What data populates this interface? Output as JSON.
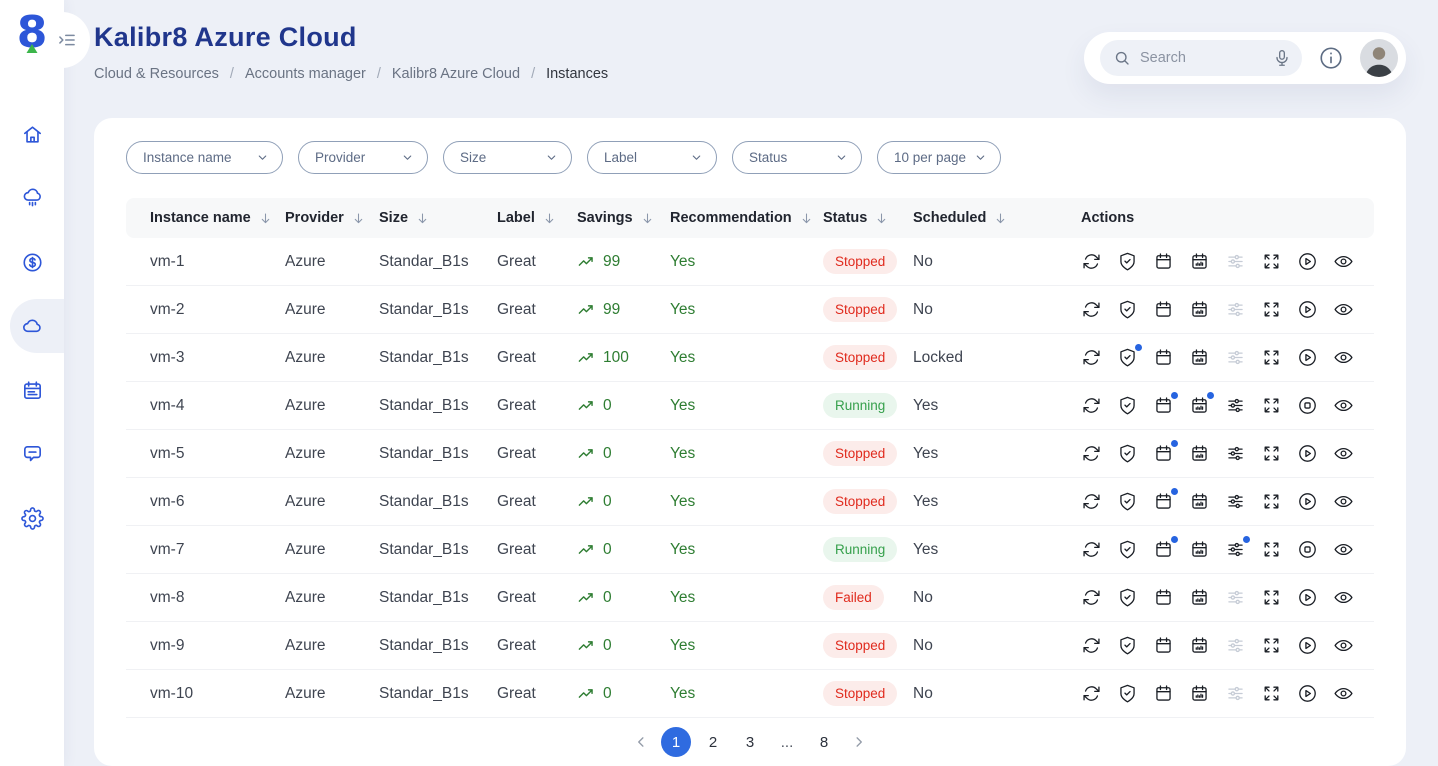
{
  "page": {
    "title": "Kalibr8 Azure Cloud",
    "breadcrumbs": [
      "Cloud & Resources",
      "Accounts manager",
      "Kalibr8 Azure Cloud",
      "Instances"
    ],
    "breadcrumb_separator": "/"
  },
  "topbar": {
    "search_placeholder": "Search",
    "icons": [
      "search-icon",
      "mic-icon",
      "info-icon",
      "avatar"
    ]
  },
  "sidebar": {
    "logo": "kalibr8-logo-8",
    "items": [
      {
        "name": "home",
        "icon": "home",
        "active": false
      },
      {
        "name": "cloud-resources",
        "icon": "cloud-network",
        "active": false
      },
      {
        "name": "costs",
        "icon": "dollar-circle",
        "active": false
      },
      {
        "name": "instances",
        "icon": "cloud",
        "active": true
      },
      {
        "name": "schedules",
        "icon": "calendar-lines",
        "active": false
      },
      {
        "name": "messages",
        "icon": "chat",
        "active": false
      },
      {
        "name": "settings",
        "icon": "gear",
        "active": false
      }
    ]
  },
  "filters": [
    {
      "label": "Instance name"
    },
    {
      "label": "Provider"
    },
    {
      "label": "Size"
    },
    {
      "label": "Label"
    },
    {
      "label": "Status"
    },
    {
      "label": "10 per page"
    }
  ],
  "table": {
    "columns": [
      {
        "label": "Instance name",
        "sortable": true
      },
      {
        "label": "Provider",
        "sortable": true
      },
      {
        "label": "Size",
        "sortable": true
      },
      {
        "label": "Label",
        "sortable": true
      },
      {
        "label": "Savings",
        "sortable": true
      },
      {
        "label": "Recommendation",
        "sortable": true
      },
      {
        "label": "Status",
        "sortable": true
      },
      {
        "label": "Scheduled",
        "sortable": true
      },
      {
        "label": "Actions",
        "sortable": false
      }
    ],
    "rows": [
      {
        "instance_name": "vm-1",
        "provider": "Azure",
        "size": "Standar_B1s",
        "label": "Great",
        "savings": "99",
        "recommendation": "Yes",
        "status": "Stopped",
        "status_variant": "danger",
        "scheduled": "No",
        "actions": [
          {
            "icon": "sync"
          },
          {
            "icon": "shield-check"
          },
          {
            "icon": "calendar"
          },
          {
            "icon": "calendar-chart"
          },
          {
            "icon": "sliders",
            "disabled": true
          },
          {
            "icon": "expand"
          },
          {
            "icon": "play"
          },
          {
            "icon": "eye"
          }
        ]
      },
      {
        "instance_name": "vm-2",
        "provider": "Azure",
        "size": "Standar_B1s",
        "label": "Great",
        "savings": "99",
        "recommendation": "Yes",
        "status": "Stopped",
        "status_variant": "danger",
        "scheduled": "No",
        "actions": [
          {
            "icon": "sync"
          },
          {
            "icon": "shield-check"
          },
          {
            "icon": "calendar"
          },
          {
            "icon": "calendar-chart"
          },
          {
            "icon": "sliders",
            "disabled": true
          },
          {
            "icon": "expand"
          },
          {
            "icon": "play"
          },
          {
            "icon": "eye"
          }
        ]
      },
      {
        "instance_name": "vm-3",
        "provider": "Azure",
        "size": "Standar_B1s",
        "label": "Great",
        "savings": "100",
        "recommendation": "Yes",
        "status": "Stopped",
        "status_variant": "danger",
        "scheduled": "Locked",
        "actions": [
          {
            "icon": "sync"
          },
          {
            "icon": "shield-check",
            "dot": true
          },
          {
            "icon": "calendar"
          },
          {
            "icon": "calendar-chart"
          },
          {
            "icon": "sliders",
            "disabled": true
          },
          {
            "icon": "expand"
          },
          {
            "icon": "play"
          },
          {
            "icon": "eye"
          }
        ]
      },
      {
        "instance_name": "vm-4",
        "provider": "Azure",
        "size": "Standar_B1s",
        "label": "Great",
        "savings": "0",
        "recommendation": "Yes",
        "status": "Running",
        "status_variant": "success",
        "scheduled": "Yes",
        "actions": [
          {
            "icon": "sync"
          },
          {
            "icon": "shield-check"
          },
          {
            "icon": "calendar",
            "dot": true
          },
          {
            "icon": "calendar-chart",
            "dot": true
          },
          {
            "icon": "sliders"
          },
          {
            "icon": "expand"
          },
          {
            "icon": "stop"
          },
          {
            "icon": "eye"
          }
        ]
      },
      {
        "instance_name": "vm-5",
        "provider": "Azure",
        "size": "Standar_B1s",
        "label": "Great",
        "savings": "0",
        "recommendation": "Yes",
        "status": "Stopped",
        "status_variant": "danger",
        "scheduled": "Yes",
        "actions": [
          {
            "icon": "sync"
          },
          {
            "icon": "shield-check"
          },
          {
            "icon": "calendar",
            "dot": true
          },
          {
            "icon": "calendar-chart"
          },
          {
            "icon": "sliders"
          },
          {
            "icon": "expand"
          },
          {
            "icon": "play"
          },
          {
            "icon": "eye"
          }
        ]
      },
      {
        "instance_name": "vm-6",
        "provider": "Azure",
        "size": "Standar_B1s",
        "label": "Great",
        "savings": "0",
        "recommendation": "Yes",
        "status": "Stopped",
        "status_variant": "danger",
        "scheduled": "Yes",
        "actions": [
          {
            "icon": "sync"
          },
          {
            "icon": "shield-check"
          },
          {
            "icon": "calendar",
            "dot": true
          },
          {
            "icon": "calendar-chart"
          },
          {
            "icon": "sliders"
          },
          {
            "icon": "expand"
          },
          {
            "icon": "play"
          },
          {
            "icon": "eye"
          }
        ]
      },
      {
        "instance_name": "vm-7",
        "provider": "Azure",
        "size": "Standar_B1s",
        "label": "Great",
        "savings": "0",
        "recommendation": "Yes",
        "status": "Running",
        "status_variant": "success",
        "scheduled": "Yes",
        "actions": [
          {
            "icon": "sync"
          },
          {
            "icon": "shield-check"
          },
          {
            "icon": "calendar",
            "dot": true
          },
          {
            "icon": "calendar-chart"
          },
          {
            "icon": "sliders",
            "dot": true
          },
          {
            "icon": "expand"
          },
          {
            "icon": "stop"
          },
          {
            "icon": "eye"
          }
        ]
      },
      {
        "instance_name": "vm-8",
        "provider": "Azure",
        "size": "Standar_B1s",
        "label": "Great",
        "savings": "0",
        "recommendation": "Yes",
        "status": "Failed",
        "status_variant": "danger",
        "scheduled": "No",
        "actions": [
          {
            "icon": "sync"
          },
          {
            "icon": "shield-check"
          },
          {
            "icon": "calendar"
          },
          {
            "icon": "calendar-chart"
          },
          {
            "icon": "sliders",
            "disabled": true
          },
          {
            "icon": "expand"
          },
          {
            "icon": "play"
          },
          {
            "icon": "eye"
          }
        ]
      },
      {
        "instance_name": "vm-9",
        "provider": "Azure",
        "size": "Standar_B1s",
        "label": "Great",
        "savings": "0",
        "recommendation": "Yes",
        "status": "Stopped",
        "status_variant": "danger",
        "scheduled": "No",
        "actions": [
          {
            "icon": "sync"
          },
          {
            "icon": "shield-check"
          },
          {
            "icon": "calendar"
          },
          {
            "icon": "calendar-chart"
          },
          {
            "icon": "sliders",
            "disabled": true
          },
          {
            "icon": "expand"
          },
          {
            "icon": "play"
          },
          {
            "icon": "eye"
          }
        ]
      },
      {
        "instance_name": "vm-10",
        "provider": "Azure",
        "size": "Standar_B1s",
        "label": "Great",
        "savings": "0",
        "recommendation": "Yes",
        "status": "Stopped",
        "status_variant": "danger",
        "scheduled": "No",
        "actions": [
          {
            "icon": "sync"
          },
          {
            "icon": "shield-check"
          },
          {
            "icon": "calendar"
          },
          {
            "icon": "calendar-chart"
          },
          {
            "icon": "sliders",
            "disabled": true
          },
          {
            "icon": "expand"
          },
          {
            "icon": "play"
          },
          {
            "icon": "eye"
          }
        ]
      }
    ]
  },
  "pagination": {
    "pages": [
      "1",
      "2",
      "3",
      "...",
      "8"
    ],
    "active": "1"
  },
  "colors": {
    "accent_blue": "#2d56d8",
    "title_navy": "#20368c",
    "pagination_active": "#2f6be0",
    "notification_dot": "#2764e0",
    "green": "#2e7d32",
    "badge_red_text": "#e02a1d",
    "badge_red_bg": "#fcecea",
    "badge_green_text": "#36a04c",
    "badge_green_bg": "#e9f6ed",
    "logo_green": "#3cb54a"
  }
}
